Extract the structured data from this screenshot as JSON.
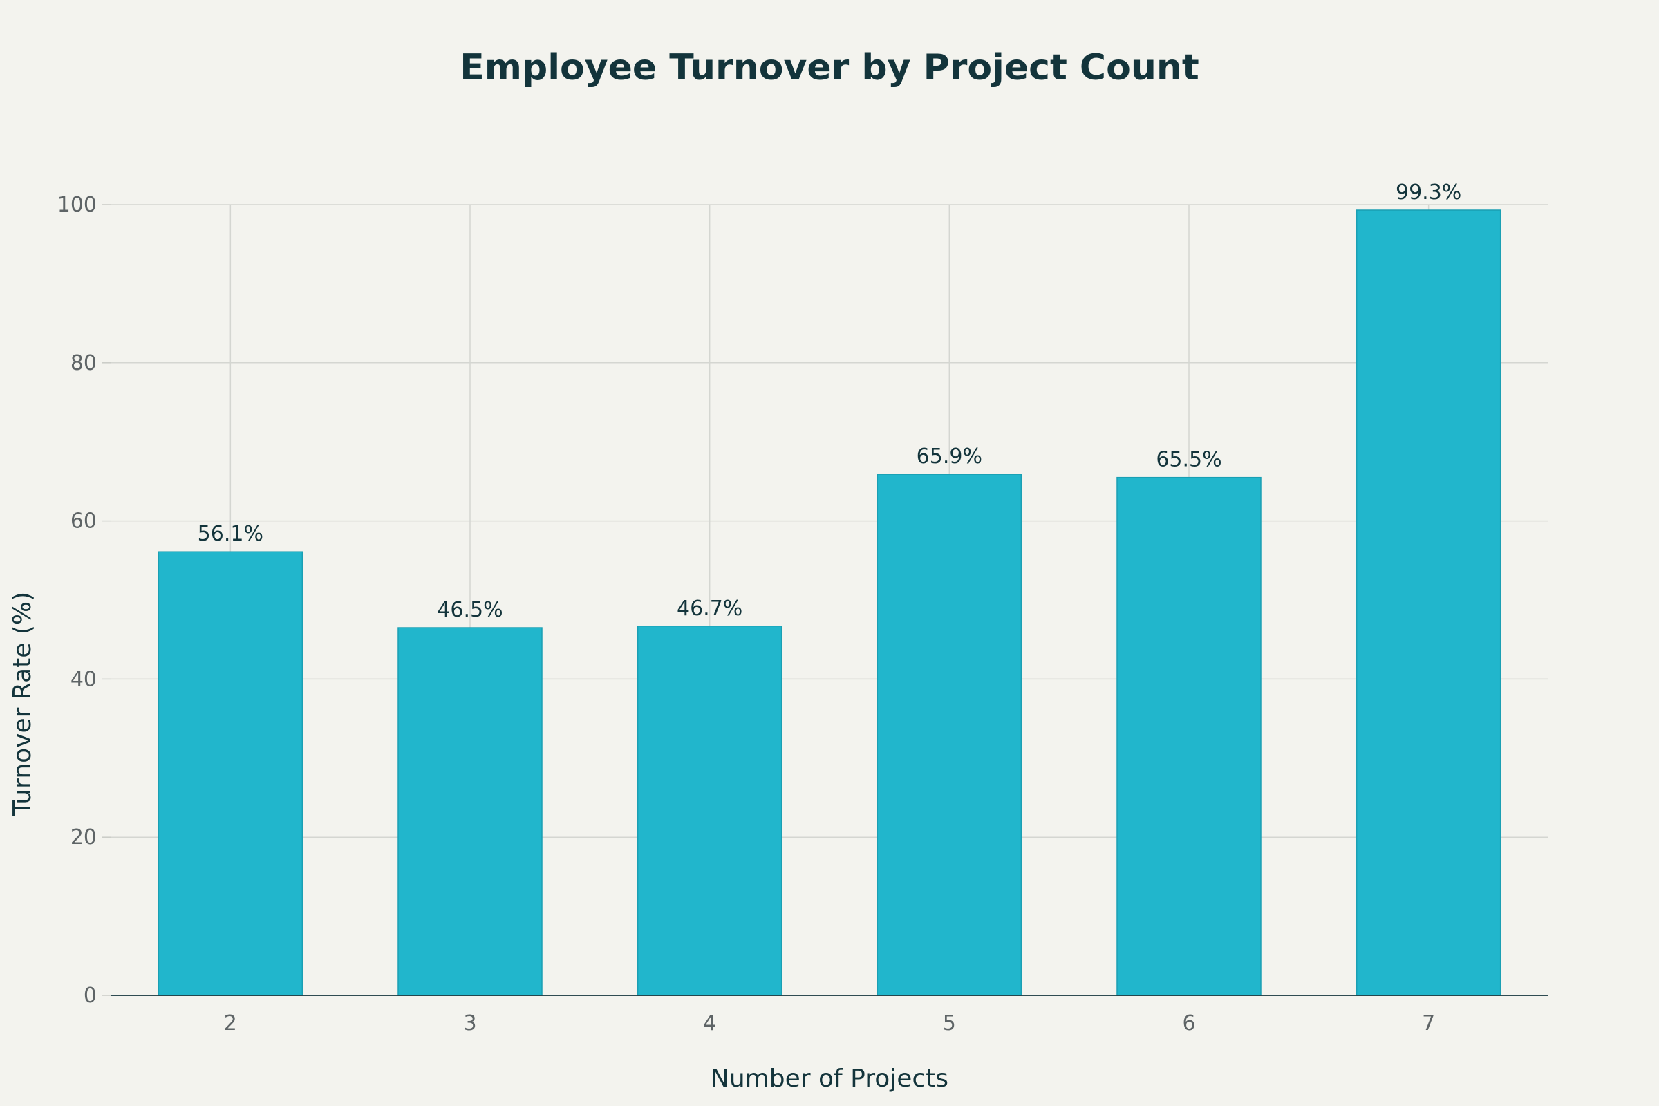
{
  "chart_data": {
    "type": "bar",
    "title": "Employee Turnover by Project Count",
    "xlabel": "Number of Projects",
    "ylabel": "Turnover Rate (%)",
    "categories": [
      "2",
      "3",
      "4",
      "5",
      "6",
      "7"
    ],
    "values": [
      56.1,
      46.5,
      46.7,
      65.9,
      65.5,
      99.3
    ],
    "data_labels": [
      "56.1%",
      "46.5%",
      "46.7%",
      "65.9%",
      "65.5%",
      "99.3%"
    ],
    "ylim": [
      0,
      100
    ],
    "yticks": [
      0,
      20,
      40,
      60,
      80,
      100
    ],
    "ytick_labels": [
      "0",
      "20",
      "40",
      "60",
      "80",
      "100"
    ],
    "grid": true,
    "legend": "none",
    "colors": {
      "bar": "#21b6cc",
      "bar_edge": "#1a9fb3",
      "background": "#f3f3ee",
      "text": "#13343b"
    }
  }
}
